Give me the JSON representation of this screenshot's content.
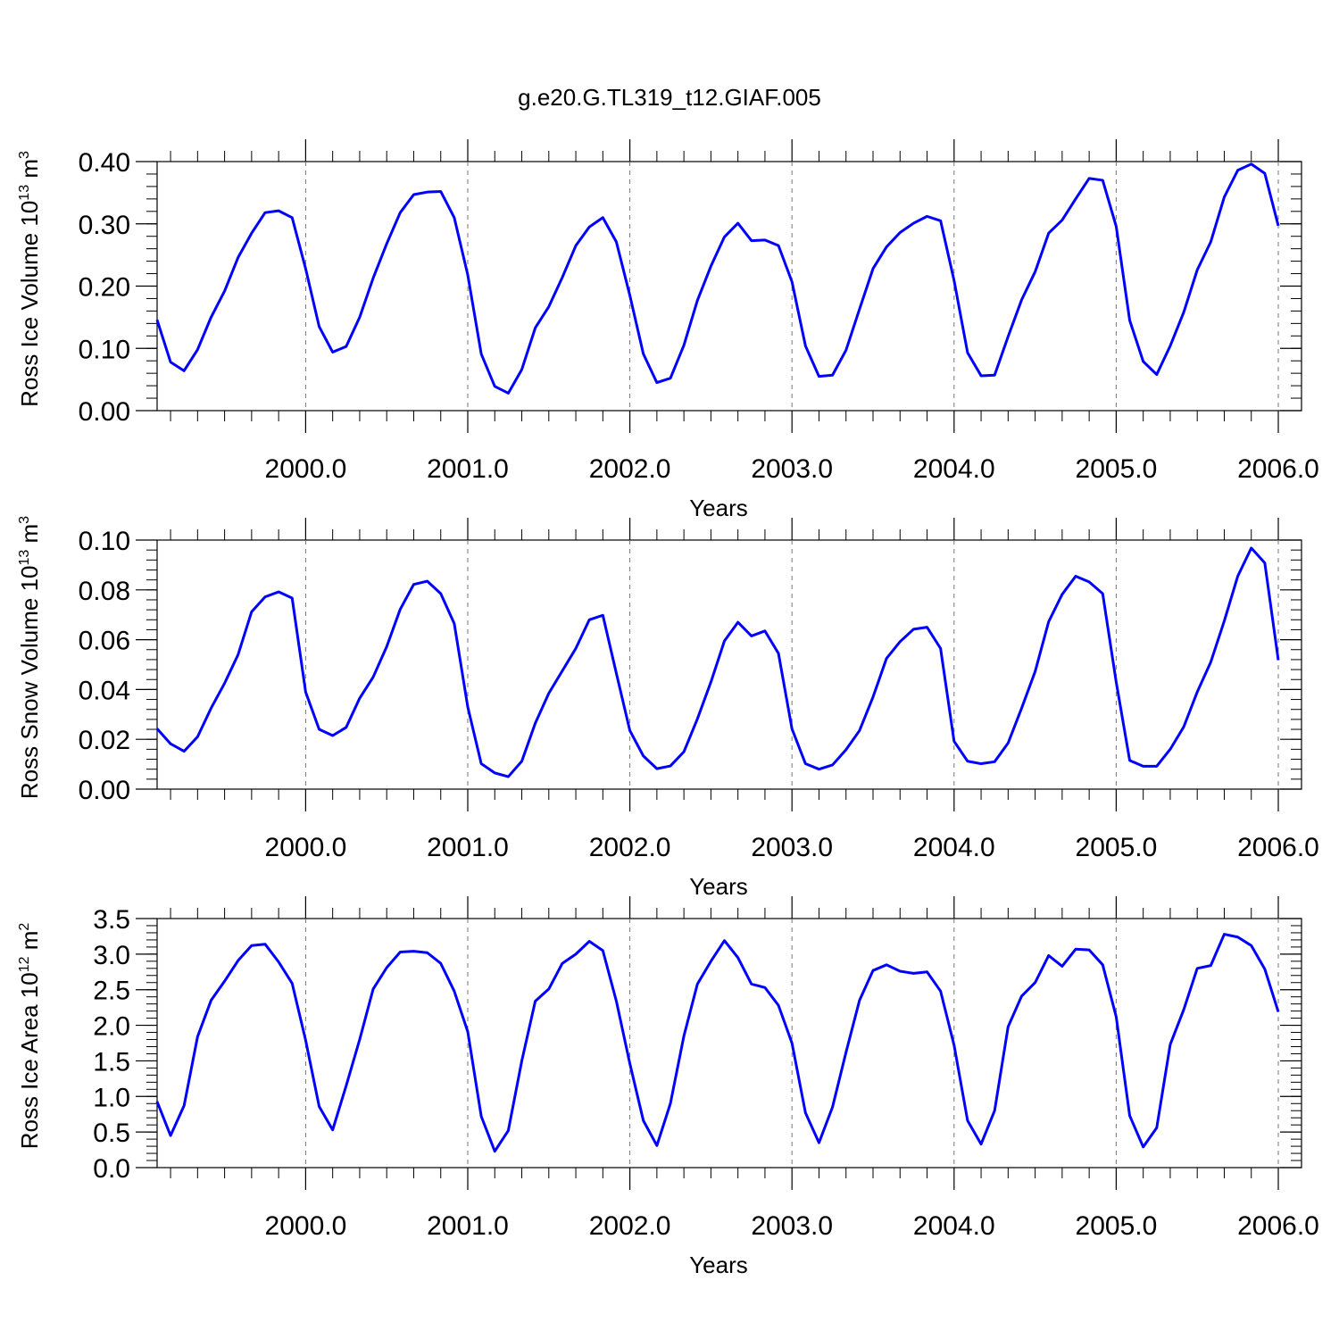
{
  "figure": {
    "title": "g.e20.G.TL319_t12.GIAF.005",
    "line_color": "#0000ff"
  },
  "chart_data": [
    {
      "type": "line",
      "title": "g.e20.G.TL319_t12.GIAF.005",
      "xlabel": "Years",
      "ylabel": {
        "text": "Ross Ice Volume 10",
        "exp": "13",
        "unit": " m",
        "unit_exp": "3"
      },
      "xlim": [
        1999.0833,
        2006.0
      ],
      "ylim": [
        0.0,
        0.4
      ],
      "x_ticks": [
        2000.0,
        2001.0,
        2002.0,
        2003.0,
        2004.0,
        2005.0,
        2006.0
      ],
      "x_tick_labels": [
        "2000.0",
        "2001.0",
        "2002.0",
        "2003.0",
        "2004.0",
        "2005.0",
        "2006.0"
      ],
      "y_ticks": [
        0.0,
        0.1,
        0.2,
        0.3,
        0.4
      ],
      "y_tick_labels": [
        "0.00",
        "0.10",
        "0.20",
        "0.30",
        "0.40"
      ],
      "y_minor_step": 0.02,
      "grid": "dashed vertical at years",
      "series": [
        {
          "values": [
            0.146,
            0.078,
            0.064,
            0.098,
            0.15,
            0.192,
            0.246,
            0.285,
            0.318,
            0.321,
            0.31,
            0.228,
            0.135,
            0.094,
            0.103,
            0.15,
            0.213,
            0.268,
            0.318,
            0.347,
            0.351,
            0.352,
            0.31,
            0.218,
            0.091,
            0.039,
            0.028,
            0.066,
            0.133,
            0.167,
            0.214,
            0.265,
            0.295,
            0.31,
            0.271,
            0.185,
            0.091,
            0.045,
            0.052,
            0.105,
            0.177,
            0.232,
            0.279,
            0.301,
            0.273,
            0.274,
            0.265,
            0.207,
            0.104,
            0.055,
            0.057,
            0.097,
            0.163,
            0.228,
            0.263,
            0.286,
            0.301,
            0.312,
            0.305,
            0.209,
            0.093,
            0.056,
            0.057,
            0.119,
            0.178,
            0.223,
            0.285,
            0.306,
            0.34,
            0.373,
            0.37,
            0.296,
            0.145,
            0.079,
            0.058,
            0.104,
            0.158,
            0.226,
            0.271,
            0.343,
            0.386,
            0.396,
            0.381,
            0.297
          ]
        }
      ]
    },
    {
      "type": "line",
      "xlabel": "Years",
      "ylabel": {
        "text": "Ross Snow Volume 10",
        "exp": "13",
        "unit": " m",
        "unit_exp": "3"
      },
      "xlim": [
        1999.0833,
        2006.0
      ],
      "ylim": [
        0.0,
        0.1
      ],
      "x_ticks": [
        2000.0,
        2001.0,
        2002.0,
        2003.0,
        2004.0,
        2005.0,
        2006.0
      ],
      "x_tick_labels": [
        "2000.0",
        "2001.0",
        "2002.0",
        "2003.0",
        "2004.0",
        "2005.0",
        "2006.0"
      ],
      "y_ticks": [
        0.0,
        0.02,
        0.04,
        0.06,
        0.08,
        0.1
      ],
      "y_tick_labels": [
        "0.00",
        "0.02",
        "0.04",
        "0.06",
        "0.08",
        "0.10"
      ],
      "y_minor_step": 0.004,
      "grid": "dashed vertical at years",
      "series": [
        {
          "values": [
            0.0243,
            0.0182,
            0.0152,
            0.021,
            0.0325,
            0.0425,
            0.054,
            0.0712,
            0.0772,
            0.0792,
            0.0767,
            0.039,
            0.024,
            0.0215,
            0.0248,
            0.0365,
            0.045,
            0.0572,
            0.0722,
            0.0822,
            0.0835,
            0.0785,
            0.0665,
            0.033,
            0.0102,
            0.0065,
            0.005,
            0.0112,
            0.0265,
            0.0385,
            0.0475,
            0.0565,
            0.068,
            0.0698,
            0.0465,
            0.0235,
            0.0133,
            0.0082,
            0.0093,
            0.015,
            0.0282,
            0.043,
            0.0595,
            0.067,
            0.0615,
            0.0635,
            0.0545,
            0.0242,
            0.0102,
            0.008,
            0.0097,
            0.0158,
            0.0235,
            0.037,
            0.0525,
            0.0592,
            0.0642,
            0.065,
            0.0565,
            0.0192,
            0.0112,
            0.0102,
            0.011,
            0.0185,
            0.0325,
            0.0472,
            0.0672,
            0.0782,
            0.0855,
            0.0832,
            0.0785,
            0.043,
            0.0115,
            0.0092,
            0.0092,
            0.016,
            0.025,
            0.039,
            0.051,
            0.0675,
            0.0855,
            0.0968,
            0.0908,
            0.0518
          ]
        }
      ]
    },
    {
      "type": "line",
      "xlabel": "Years",
      "ylabel": {
        "text": "Ross Ice Area 10",
        "exp": "12",
        "unit": " m",
        "unit_exp": "2"
      },
      "xlim": [
        1999.0833,
        2006.0
      ],
      "ylim": [
        0.0,
        3.5
      ],
      "x_ticks": [
        2000.0,
        2001.0,
        2002.0,
        2003.0,
        2004.0,
        2005.0,
        2006.0
      ],
      "x_tick_labels": [
        "2000.0",
        "2001.0",
        "2002.0",
        "2003.0",
        "2004.0",
        "2005.0",
        "2006.0"
      ],
      "y_ticks": [
        0.0,
        0.5,
        1.0,
        1.5,
        2.0,
        2.5,
        3.0,
        3.5
      ],
      "y_tick_labels": [
        "0.0",
        "0.5",
        "1.0",
        "1.5",
        "2.0",
        "2.5",
        "3.0",
        "3.5"
      ],
      "y_minor_step": 0.1,
      "grid": "dashed vertical at years",
      "series": [
        {
          "values": [
            0.93,
            0.45,
            0.87,
            1.84,
            2.35,
            2.62,
            2.91,
            3.12,
            3.14,
            2.89,
            2.59,
            1.79,
            0.86,
            0.53,
            1.15,
            1.8,
            2.51,
            2.81,
            3.03,
            3.04,
            3.02,
            2.87,
            2.48,
            1.91,
            0.72,
            0.23,
            0.52,
            1.5,
            2.34,
            2.51,
            2.87,
            3.0,
            3.18,
            3.05,
            2.34,
            1.46,
            0.66,
            0.31,
            0.9,
            1.85,
            2.58,
            2.9,
            3.19,
            2.95,
            2.58,
            2.53,
            2.28,
            1.75,
            0.77,
            0.35,
            0.85,
            1.62,
            2.35,
            2.77,
            2.85,
            2.76,
            2.73,
            2.75,
            2.48,
            1.72,
            0.66,
            0.33,
            0.8,
            1.98,
            2.41,
            2.6,
            2.98,
            2.83,
            3.07,
            3.06,
            2.85,
            2.12,
            0.73,
            0.29,
            0.56,
            1.73,
            2.22,
            2.8,
            2.84,
            3.28,
            3.24,
            3.12,
            2.79,
            2.19
          ]
        }
      ]
    }
  ]
}
